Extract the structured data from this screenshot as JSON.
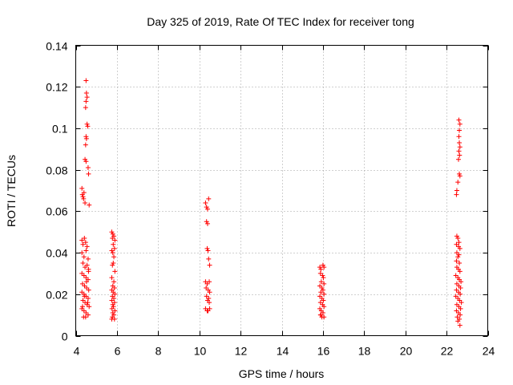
{
  "chart_data": {
    "type": "scatter",
    "title": "Day 325 of 2019, Rate Of TEC Index for receiver tong",
    "xlabel": "GPS time / hours",
    "ylabel": "ROTI / TECUs",
    "xlim": [
      4,
      24
    ],
    "ylim": [
      0,
      0.14
    ],
    "x_ticks": [
      4,
      6,
      8,
      10,
      12,
      14,
      16,
      18,
      20,
      22,
      24
    ],
    "x_tick_labels": [
      "4",
      "6",
      "8",
      "10",
      "12",
      "14",
      "16",
      "18",
      "20",
      "22",
      "24"
    ],
    "y_ticks": [
      0,
      0.02,
      0.04,
      0.06,
      0.08,
      0.1,
      0.12,
      0.14
    ],
    "y_tick_labels": [
      "0",
      "0.02",
      "0.04",
      "0.06",
      "0.08",
      "0.1",
      "0.12",
      "0.14"
    ],
    "grid": true,
    "marker": "+",
    "color": "#ff0000",
    "series": [
      {
        "name": "ROTI",
        "points": [
          [
            4.3,
            0.071
          ],
          [
            4.32,
            0.068
          ],
          [
            4.35,
            0.067
          ],
          [
            4.38,
            0.066
          ],
          [
            4.4,
            0.069
          ],
          [
            4.45,
            0.064
          ],
          [
            4.5,
            0.123
          ],
          [
            4.52,
            0.117
          ],
          [
            4.5,
            0.113
          ],
          [
            4.48,
            0.11
          ],
          [
            4.55,
            0.115
          ],
          [
            4.55,
            0.102
          ],
          [
            4.58,
            0.101
          ],
          [
            4.5,
            0.096
          ],
          [
            4.52,
            0.095
          ],
          [
            4.48,
            0.092
          ],
          [
            4.45,
            0.085
          ],
          [
            4.5,
            0.084
          ],
          [
            4.6,
            0.081
          ],
          [
            4.62,
            0.078
          ],
          [
            4.65,
            0.063
          ],
          [
            4.3,
            0.046
          ],
          [
            4.35,
            0.044
          ],
          [
            4.42,
            0.047
          ],
          [
            4.48,
            0.045
          ],
          [
            4.55,
            0.043
          ],
          [
            4.3,
            0.04
          ],
          [
            4.4,
            0.038
          ],
          [
            4.5,
            0.041
          ],
          [
            4.6,
            0.037
          ],
          [
            4.35,
            0.035
          ],
          [
            4.45,
            0.033
          ],
          [
            4.55,
            0.034
          ],
          [
            4.62,
            0.032
          ],
          [
            4.3,
            0.03
          ],
          [
            4.4,
            0.029
          ],
          [
            4.5,
            0.028
          ],
          [
            4.6,
            0.027
          ],
          [
            4.33,
            0.025
          ],
          [
            4.43,
            0.024
          ],
          [
            4.53,
            0.023
          ],
          [
            4.63,
            0.022
          ],
          [
            4.3,
            0.021
          ],
          [
            4.4,
            0.02
          ],
          [
            4.5,
            0.019
          ],
          [
            4.6,
            0.018
          ],
          [
            4.35,
            0.017
          ],
          [
            4.45,
            0.016
          ],
          [
            4.55,
            0.015
          ],
          [
            4.65,
            0.014
          ],
          [
            4.3,
            0.013
          ],
          [
            4.4,
            0.012
          ],
          [
            4.5,
            0.011
          ],
          [
            4.6,
            0.01
          ],
          [
            4.38,
            0.009
          ],
          [
            4.48,
            0.009
          ],
          [
            4.33,
            0.014
          ],
          [
            4.58,
            0.016
          ],
          [
            4.42,
            0.019
          ],
          [
            4.52,
            0.026
          ],
          [
            4.62,
            0.031
          ],
          [
            5.75,
            0.05
          ],
          [
            5.8,
            0.049
          ],
          [
            5.85,
            0.048
          ],
          [
            5.78,
            0.047
          ],
          [
            5.9,
            0.046
          ],
          [
            5.82,
            0.044
          ],
          [
            5.88,
            0.042
          ],
          [
            5.75,
            0.041
          ],
          [
            5.8,
            0.04
          ],
          [
            5.85,
            0.038
          ],
          [
            5.82,
            0.035
          ],
          [
            5.78,
            0.034
          ],
          [
            5.9,
            0.031
          ],
          [
            5.75,
            0.028
          ],
          [
            5.85,
            0.026
          ],
          [
            5.8,
            0.024
          ],
          [
            5.88,
            0.023
          ],
          [
            5.75,
            0.022
          ],
          [
            5.82,
            0.021
          ],
          [
            5.9,
            0.02
          ],
          [
            5.78,
            0.019
          ],
          [
            5.85,
            0.018
          ],
          [
            5.75,
            0.017
          ],
          [
            5.88,
            0.016
          ],
          [
            5.8,
            0.015
          ],
          [
            5.83,
            0.014
          ],
          [
            5.76,
            0.013
          ],
          [
            5.9,
            0.012
          ],
          [
            5.8,
            0.011
          ],
          [
            5.85,
            0.01
          ],
          [
            5.78,
            0.009
          ],
          [
            5.88,
            0.008
          ],
          [
            5.75,
            0.008
          ],
          [
            10.3,
            0.064
          ],
          [
            10.45,
            0.066
          ],
          [
            10.35,
            0.062
          ],
          [
            10.4,
            0.061
          ],
          [
            10.35,
            0.055
          ],
          [
            10.4,
            0.054
          ],
          [
            10.38,
            0.042
          ],
          [
            10.42,
            0.041
          ],
          [
            10.45,
            0.037
          ],
          [
            10.5,
            0.034
          ],
          [
            10.3,
            0.026
          ],
          [
            10.38,
            0.025
          ],
          [
            10.48,
            0.026
          ],
          [
            10.33,
            0.023
          ],
          [
            10.43,
            0.022
          ],
          [
            10.5,
            0.021
          ],
          [
            10.35,
            0.019
          ],
          [
            10.45,
            0.018
          ],
          [
            10.4,
            0.017
          ],
          [
            10.48,
            0.016
          ],
          [
            10.3,
            0.013
          ],
          [
            10.38,
            0.012
          ],
          [
            10.42,
            0.012
          ],
          [
            10.5,
            0.013
          ],
          [
            15.85,
            0.033
          ],
          [
            15.9,
            0.032
          ],
          [
            16.0,
            0.034
          ],
          [
            16.05,
            0.033
          ],
          [
            15.88,
            0.03
          ],
          [
            15.98,
            0.029
          ],
          [
            16.02,
            0.028
          ],
          [
            15.92,
            0.026
          ],
          [
            16.05,
            0.025
          ],
          [
            15.85,
            0.024
          ],
          [
            15.95,
            0.023
          ],
          [
            16.0,
            0.022
          ],
          [
            15.9,
            0.021
          ],
          [
            16.05,
            0.02
          ],
          [
            15.85,
            0.019
          ],
          [
            15.95,
            0.018
          ],
          [
            16.02,
            0.017
          ],
          [
            15.88,
            0.016
          ],
          [
            15.98,
            0.015
          ],
          [
            16.05,
            0.014
          ],
          [
            15.85,
            0.013
          ],
          [
            15.92,
            0.012
          ],
          [
            16.0,
            0.011
          ],
          [
            15.9,
            0.01
          ],
          [
            15.95,
            0.009
          ],
          [
            16.05,
            0.009
          ],
          [
            15.88,
            0.01
          ],
          [
            22.6,
            0.104
          ],
          [
            22.65,
            0.102
          ],
          [
            22.62,
            0.099
          ],
          [
            22.6,
            0.096
          ],
          [
            22.62,
            0.093
          ],
          [
            22.65,
            0.091
          ],
          [
            22.6,
            0.089
          ],
          [
            22.63,
            0.087
          ],
          [
            22.58,
            0.085
          ],
          [
            22.62,
            0.078
          ],
          [
            22.65,
            0.077
          ],
          [
            22.55,
            0.074
          ],
          [
            22.5,
            0.07
          ],
          [
            22.48,
            0.068
          ],
          [
            22.5,
            0.048
          ],
          [
            22.55,
            0.047
          ],
          [
            22.6,
            0.045
          ],
          [
            22.48,
            0.044
          ],
          [
            22.58,
            0.043
          ],
          [
            22.65,
            0.042
          ],
          [
            22.5,
            0.04
          ],
          [
            22.6,
            0.039
          ],
          [
            22.55,
            0.038
          ],
          [
            22.48,
            0.036
          ],
          [
            22.62,
            0.035
          ],
          [
            22.5,
            0.033
          ],
          [
            22.58,
            0.032
          ],
          [
            22.65,
            0.031
          ],
          [
            22.45,
            0.029
          ],
          [
            22.55,
            0.028
          ],
          [
            22.62,
            0.027
          ],
          [
            22.7,
            0.026
          ],
          [
            22.5,
            0.025
          ],
          [
            22.6,
            0.024
          ],
          [
            22.68,
            0.023
          ],
          [
            22.48,
            0.022
          ],
          [
            22.58,
            0.021
          ],
          [
            22.66,
            0.02
          ],
          [
            22.45,
            0.019
          ],
          [
            22.55,
            0.018
          ],
          [
            22.63,
            0.017
          ],
          [
            22.72,
            0.016
          ],
          [
            22.5,
            0.015
          ],
          [
            22.6,
            0.014
          ],
          [
            22.68,
            0.013
          ],
          [
            22.48,
            0.012
          ],
          [
            22.58,
            0.011
          ],
          [
            22.66,
            0.01
          ],
          [
            22.52,
            0.009
          ],
          [
            22.62,
            0.008
          ],
          [
            22.55,
            0.007
          ],
          [
            22.65,
            0.005
          ]
        ]
      }
    ]
  }
}
